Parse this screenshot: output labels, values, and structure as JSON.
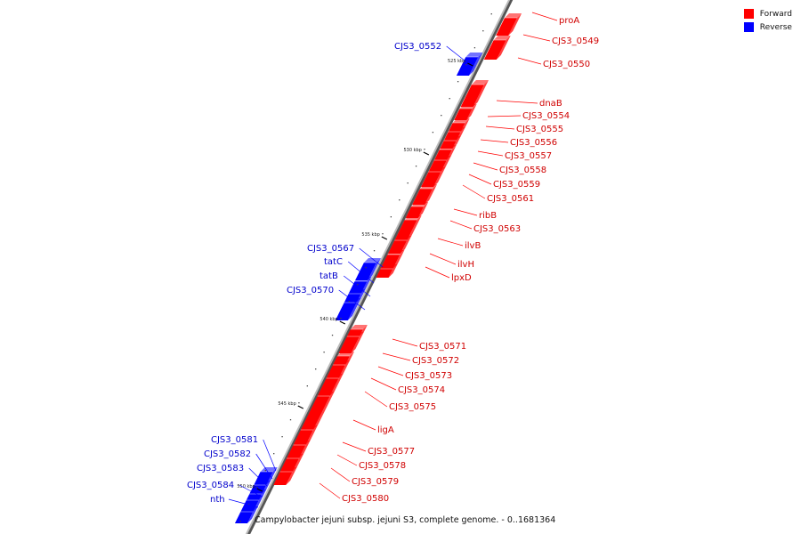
{
  "legend": [
    {
      "label": "Forward",
      "color": "#ff0000"
    },
    {
      "label": "Reverse",
      "color": "#0000ff"
    }
  ],
  "caption": "Campylobacter jejuni subsp. jejuni S3, complete genome. - 0..1681364",
  "colors": {
    "forward": "#ff0000",
    "reverse": "#0000ff",
    "backbone": "#888888"
  },
  "scale_ticks": [
    "525 kbp",
    "530 kbp",
    "535 kbp",
    "540 kbp",
    "545 kbp",
    "550 kbp"
  ],
  "forward_genes": [
    "proA",
    "CJS3_0549",
    "CJS3_0550",
    "dnaB",
    "CJS3_0554",
    "CJS3_0555",
    "CJS3_0556",
    "CJS3_0557",
    "CJS3_0558",
    "CJS3_0559",
    "CJS3_0561",
    "ribB",
    "CJS3_0563",
    "ilvB",
    "ilvH",
    "lpxD",
    "CJS3_0571",
    "CJS3_0572",
    "CJS3_0573",
    "CJS3_0574",
    "CJS3_0575",
    "ligA",
    "CJS3_0577",
    "CJS3_0578",
    "CJS3_0579",
    "CJS3_0580"
  ],
  "reverse_genes": [
    "CJS3_0552",
    "CJS3_0567",
    "tatC",
    "tatB",
    "CJS3_0570",
    "CJS3_0581",
    "CJS3_0582",
    "CJS3_0583",
    "CJS3_0584",
    "nth"
  ]
}
